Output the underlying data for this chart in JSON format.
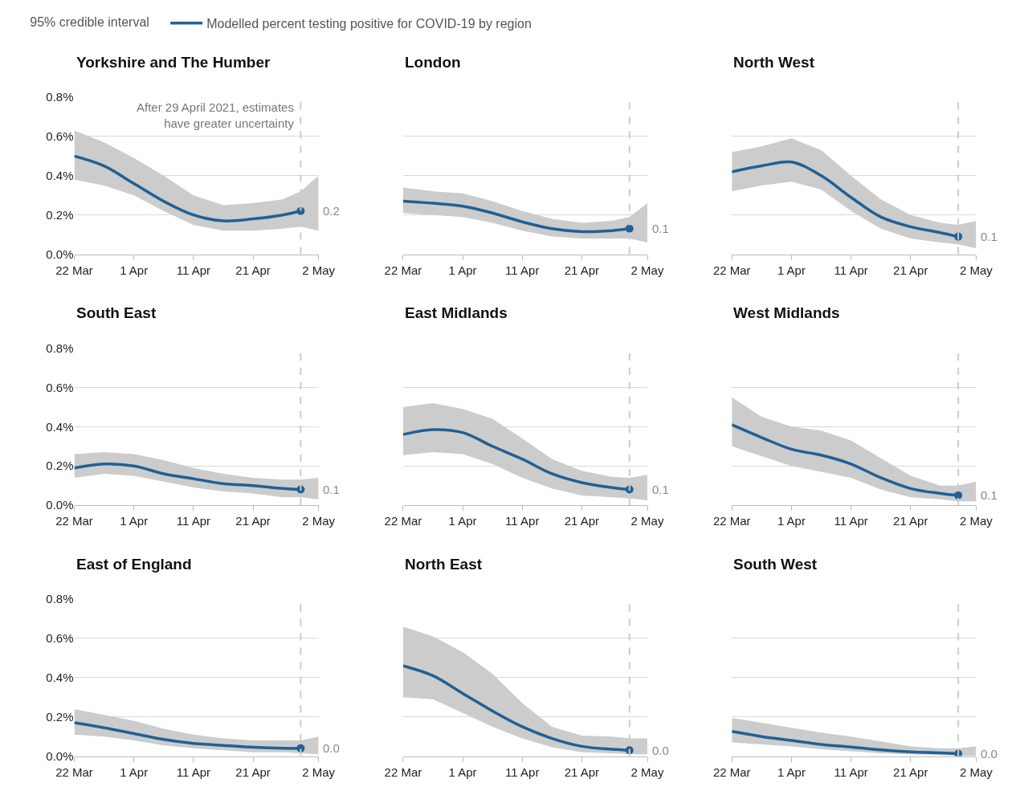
{
  "chart_data": [
    {
      "type": "line",
      "title": "Yorkshire and The Humber",
      "x": [
        "2021-03-22",
        "2021-03-27",
        "2021-04-01",
        "2021-04-06",
        "2021-04-11",
        "2021-04-16",
        "2021-04-21",
        "2021-04-26",
        "2021-04-29",
        "2021-05-02"
      ],
      "xlim": [
        "2021-03-22",
        "2021-05-02"
      ],
      "xticks": [
        {
          "value": "2021-03-22",
          "label": "22 Mar"
        },
        {
          "value": "2021-04-01",
          "label": "1 Apr"
        },
        {
          "value": "2021-04-11",
          "label": "11 Apr"
        },
        {
          "value": "2021-04-21",
          "label": "21 Apr"
        },
        {
          "value": "2021-05-02",
          "label": "2 May"
        }
      ],
      "ylim": [
        0,
        0.8
      ],
      "yticks": [
        {
          "value": 0,
          "label": "0.0%"
        },
        {
          "value": 0.2,
          "label": "0.2%"
        },
        {
          "value": 0.4,
          "label": "0.4%"
        },
        {
          "value": 0.6,
          "label": "0.6%"
        },
        {
          "value": 0.8,
          "label": "0.8%"
        }
      ],
      "grid": "y",
      "legend": "top",
      "legend_title": "95% credible interval",
      "ref_lines": [
        {
          "axis": "x",
          "value": "2021-04-29",
          "label": "After 29 April 2021, estimates\nhave greater uncertainty",
          "color": "#cccccc",
          "line_style": "dashed"
        }
      ],
      "series": [
        {
          "name": "Modelled percent testing positive for COVID-19 by region",
          "color": "#206095",
          "values": [
            0.5,
            0.45,
            0.36,
            0.27,
            0.2,
            0.17,
            0.18,
            0.2,
            0.22,
            null
          ],
          "lower": [
            0.38,
            0.35,
            0.3,
            0.22,
            0.15,
            0.12,
            0.12,
            0.13,
            0.14,
            0.12
          ],
          "upper": [
            0.63,
            0.57,
            0.49,
            0.4,
            0.3,
            0.25,
            0.26,
            0.28,
            0.32,
            0.4
          ],
          "value_labels": [
            null,
            null,
            null,
            null,
            null,
            null,
            null,
            null,
            "0.2",
            null
          ]
        }
      ]
    },
    {
      "type": "line",
      "title": "London",
      "x": [
        "2021-03-22",
        "2021-03-27",
        "2021-04-01",
        "2021-04-06",
        "2021-04-11",
        "2021-04-16",
        "2021-04-21",
        "2021-04-26",
        "2021-04-29",
        "2021-05-02"
      ],
      "xlim": [
        "2021-03-22",
        "2021-05-02"
      ],
      "xticks": [
        {
          "value": "2021-03-22",
          "label": "22 Mar"
        },
        {
          "value": "2021-04-01",
          "label": "1 Apr"
        },
        {
          "value": "2021-04-11",
          "label": "11 Apr"
        },
        {
          "value": "2021-04-21",
          "label": "21 Apr"
        },
        {
          "value": "2021-05-02",
          "label": "2 May"
        }
      ],
      "ylim": [
        0,
        0.8
      ],
      "yticks": [
        0,
        0.2,
        0.4,
        0.6,
        0.8
      ],
      "grid": "y",
      "tick_labels": "x",
      "ref_lines": [
        {
          "axis": "x",
          "value": "2021-04-29",
          "color": "#cccccc",
          "line_style": "dashed"
        }
      ],
      "series": [
        {
          "color": "#206095",
          "values": [
            0.27,
            0.26,
            0.245,
            0.21,
            0.165,
            0.13,
            0.115,
            0.12,
            0.13,
            null
          ],
          "lower": [
            0.21,
            0.2,
            0.19,
            0.16,
            0.12,
            0.09,
            0.08,
            0.08,
            0.08,
            0.06
          ],
          "upper": [
            0.34,
            0.32,
            0.31,
            0.27,
            0.22,
            0.18,
            0.16,
            0.17,
            0.19,
            0.26
          ],
          "value_labels": [
            null,
            null,
            null,
            null,
            null,
            null,
            null,
            null,
            "0.1",
            null
          ]
        }
      ]
    },
    {
      "type": "line",
      "title": "North West",
      "x": [
        "2021-03-22",
        "2021-03-27",
        "2021-04-01",
        "2021-04-06",
        "2021-04-11",
        "2021-04-16",
        "2021-04-21",
        "2021-04-26",
        "2021-04-29",
        "2021-05-02"
      ],
      "xlim": [
        "2021-03-22",
        "2021-05-02"
      ],
      "xticks": [
        {
          "value": "2021-03-22",
          "label": "22 Mar"
        },
        {
          "value": "2021-04-01",
          "label": "1 Apr"
        },
        {
          "value": "2021-04-11",
          "label": "11 Apr"
        },
        {
          "value": "2021-04-21",
          "label": "21 Apr"
        },
        {
          "value": "2021-05-02",
          "label": "2 May"
        }
      ],
      "ylim": [
        0,
        0.8
      ],
      "yticks": [
        0,
        0.2,
        0.4,
        0.6,
        0.8
      ],
      "grid": "y",
      "tick_labels": "x",
      "ref_lines": [
        {
          "axis": "x",
          "value": "2021-04-29",
          "color": "#cccccc",
          "line_style": "dashed"
        }
      ],
      "series": [
        {
          "color": "#206095",
          "values": [
            0.42,
            0.45,
            0.47,
            0.4,
            0.29,
            0.19,
            0.14,
            0.11,
            0.09,
            null
          ],
          "lower": [
            0.32,
            0.35,
            0.37,
            0.33,
            0.22,
            0.13,
            0.08,
            0.06,
            0.05,
            0.03
          ],
          "upper": [
            0.52,
            0.55,
            0.59,
            0.53,
            0.4,
            0.28,
            0.2,
            0.16,
            0.15,
            0.17
          ],
          "value_labels": [
            null,
            null,
            null,
            null,
            null,
            null,
            null,
            null,
            "0.1",
            null
          ]
        }
      ]
    },
    {
      "type": "line",
      "title": "South East",
      "x": [
        "2021-03-22",
        "2021-03-27",
        "2021-04-01",
        "2021-04-06",
        "2021-04-11",
        "2021-04-16",
        "2021-04-21",
        "2021-04-26",
        "2021-04-29",
        "2021-05-02"
      ],
      "xlim": [
        "2021-03-22",
        "2021-05-02"
      ],
      "xticks": [
        {
          "value": "2021-03-22",
          "label": "22 Mar"
        },
        {
          "value": "2021-04-01",
          "label": "1 Apr"
        },
        {
          "value": "2021-04-11",
          "label": "11 Apr"
        },
        {
          "value": "2021-04-21",
          "label": "21 Apr"
        },
        {
          "value": "2021-05-02",
          "label": "2 May"
        }
      ],
      "ylim": [
        0,
        0.8
      ],
      "yticks": [
        {
          "value": 0,
          "label": "0.0%"
        },
        {
          "value": 0.2,
          "label": "0.2%"
        },
        {
          "value": 0.4,
          "label": "0.4%"
        },
        {
          "value": 0.6,
          "label": "0.6%"
        },
        {
          "value": 0.8,
          "label": "0.8%"
        }
      ],
      "grid": "y",
      "ref_lines": [
        {
          "axis": "x",
          "value": "2021-04-29",
          "color": "#cccccc",
          "line_style": "dashed"
        }
      ],
      "series": [
        {
          "color": "#206095",
          "values": [
            0.19,
            0.21,
            0.2,
            0.16,
            0.135,
            0.11,
            0.1,
            0.085,
            0.08,
            null
          ],
          "lower": [
            0.14,
            0.16,
            0.15,
            0.12,
            0.09,
            0.07,
            0.06,
            0.04,
            0.04,
            0.03
          ],
          "upper": [
            0.26,
            0.27,
            0.26,
            0.23,
            0.19,
            0.16,
            0.14,
            0.13,
            0.13,
            0.14
          ],
          "value_labels": [
            null,
            null,
            null,
            null,
            null,
            null,
            null,
            null,
            "0.1",
            null
          ]
        }
      ]
    },
    {
      "type": "line",
      "title": "East Midlands",
      "x": [
        "2021-03-22",
        "2021-03-27",
        "2021-04-01",
        "2021-04-06",
        "2021-04-11",
        "2021-04-16",
        "2021-04-21",
        "2021-04-26",
        "2021-04-29",
        "2021-05-02"
      ],
      "xlim": [
        "2021-03-22",
        "2021-05-02"
      ],
      "xticks": [
        {
          "value": "2021-03-22",
          "label": "22 Mar"
        },
        {
          "value": "2021-04-01",
          "label": "1 Apr"
        },
        {
          "value": "2021-04-11",
          "label": "11 Apr"
        },
        {
          "value": "2021-04-21",
          "label": "21 Apr"
        },
        {
          "value": "2021-05-02",
          "label": "2 May"
        }
      ],
      "ylim": [
        0,
        0.8
      ],
      "yticks": [
        0,
        0.2,
        0.4,
        0.6,
        0.8
      ],
      "grid": "y",
      "tick_labels": "x",
      "ref_lines": [
        {
          "axis": "x",
          "value": "2021-04-29",
          "color": "#cccccc",
          "line_style": "dashed"
        }
      ],
      "series": [
        {
          "color": "#206095",
          "values": [
            0.36,
            0.385,
            0.37,
            0.3,
            0.235,
            0.16,
            0.115,
            0.09,
            0.08,
            null
          ],
          "lower": [
            0.255,
            0.27,
            0.26,
            0.21,
            0.14,
            0.085,
            0.05,
            0.04,
            0.035,
            0.025
          ],
          "upper": [
            0.5,
            0.52,
            0.49,
            0.44,
            0.34,
            0.235,
            0.175,
            0.145,
            0.14,
            0.155
          ],
          "value_labels": [
            null,
            null,
            null,
            null,
            null,
            null,
            null,
            null,
            "0.1",
            null
          ]
        }
      ]
    },
    {
      "type": "line",
      "title": "West Midlands",
      "x": [
        "2021-03-22",
        "2021-03-27",
        "2021-04-01",
        "2021-04-06",
        "2021-04-11",
        "2021-04-16",
        "2021-04-21",
        "2021-04-26",
        "2021-04-29",
        "2021-05-02"
      ],
      "xlim": [
        "2021-03-22",
        "2021-05-02"
      ],
      "xticks": [
        {
          "value": "2021-03-22",
          "label": "22 Mar"
        },
        {
          "value": "2021-04-01",
          "label": "1 Apr"
        },
        {
          "value": "2021-04-11",
          "label": "11 Apr"
        },
        {
          "value": "2021-04-21",
          "label": "21 Apr"
        },
        {
          "value": "2021-05-02",
          "label": "2 May"
        }
      ],
      "ylim": [
        0,
        0.8
      ],
      "yticks": [
        0,
        0.2,
        0.4,
        0.6,
        0.8
      ],
      "grid": "y",
      "tick_labels": "x",
      "ref_lines": [
        {
          "axis": "x",
          "value": "2021-04-29",
          "color": "#cccccc",
          "line_style": "dashed"
        }
      ],
      "series": [
        {
          "color": "#206095",
          "values": [
            0.41,
            0.345,
            0.285,
            0.255,
            0.21,
            0.14,
            0.085,
            0.06,
            0.05,
            null
          ],
          "lower": [
            0.3,
            0.25,
            0.2,
            0.17,
            0.14,
            0.08,
            0.04,
            0.03,
            0.02,
            0.02
          ],
          "upper": [
            0.55,
            0.45,
            0.4,
            0.38,
            0.33,
            0.24,
            0.15,
            0.1,
            0.1,
            0.12
          ],
          "value_labels": [
            null,
            null,
            null,
            null,
            null,
            null,
            null,
            null,
            "0.1",
            null
          ]
        }
      ]
    },
    {
      "type": "line",
      "title": "East of England",
      "x": [
        "2021-03-22",
        "2021-03-27",
        "2021-04-01",
        "2021-04-06",
        "2021-04-11",
        "2021-04-16",
        "2021-04-21",
        "2021-04-26",
        "2021-04-29",
        "2021-05-02"
      ],
      "xlim": [
        "2021-03-22",
        "2021-05-02"
      ],
      "xticks": [
        {
          "value": "2021-03-22",
          "label": "22 Mar"
        },
        {
          "value": "2021-04-01",
          "label": "1 Apr"
        },
        {
          "value": "2021-04-11",
          "label": "11 Apr"
        },
        {
          "value": "2021-04-21",
          "label": "21 Apr"
        },
        {
          "value": "2021-05-02",
          "label": "2 May"
        }
      ],
      "ylim": [
        0,
        0.8
      ],
      "yticks": [
        {
          "value": 0,
          "label": "0.0%"
        },
        {
          "value": 0.2,
          "label": "0.2%"
        },
        {
          "value": 0.4,
          "label": "0.4%"
        },
        {
          "value": 0.6,
          "label": "0.6%"
        },
        {
          "value": 0.8,
          "label": "0.8%"
        }
      ],
      "grid": "y",
      "ref_lines": [
        {
          "axis": "x",
          "value": "2021-04-29",
          "color": "#cccccc",
          "line_style": "dashed"
        }
      ],
      "series": [
        {
          "color": "#206095",
          "values": [
            0.17,
            0.145,
            0.115,
            0.085,
            0.065,
            0.055,
            0.045,
            0.04,
            0.04,
            null
          ],
          "lower": [
            0.11,
            0.1,
            0.08,
            0.055,
            0.04,
            0.03,
            0.02,
            0.02,
            0.015,
            0.01
          ],
          "upper": [
            0.24,
            0.21,
            0.18,
            0.14,
            0.11,
            0.09,
            0.08,
            0.08,
            0.08,
            0.1
          ],
          "value_labels": [
            null,
            null,
            null,
            null,
            null,
            null,
            null,
            null,
            "0.0",
            null
          ]
        }
      ]
    },
    {
      "type": "line",
      "title": "North East",
      "x": [
        "2021-03-22",
        "2021-03-27",
        "2021-04-01",
        "2021-04-06",
        "2021-04-11",
        "2021-04-16",
        "2021-04-21",
        "2021-04-26",
        "2021-04-29",
        "2021-05-02"
      ],
      "xlim": [
        "2021-03-22",
        "2021-05-02"
      ],
      "xticks": [
        {
          "value": "2021-03-22",
          "label": "22 Mar"
        },
        {
          "value": "2021-04-01",
          "label": "1 Apr"
        },
        {
          "value": "2021-04-11",
          "label": "11 Apr"
        },
        {
          "value": "2021-04-21",
          "label": "21 Apr"
        },
        {
          "value": "2021-05-02",
          "label": "2 May"
        }
      ],
      "ylim": [
        0,
        0.8
      ],
      "yticks": [
        0,
        0.2,
        0.4,
        0.6,
        0.8
      ],
      "grid": "y",
      "tick_labels": "x",
      "ref_lines": [
        {
          "axis": "x",
          "value": "2021-04-29",
          "color": "#cccccc",
          "line_style": "dashed"
        }
      ],
      "series": [
        {
          "color": "#206095",
          "values": [
            0.46,
            0.41,
            0.32,
            0.23,
            0.15,
            0.09,
            0.05,
            0.035,
            0.03,
            null
          ],
          "lower": [
            0.3,
            0.29,
            0.22,
            0.15,
            0.09,
            0.045,
            0.02,
            0.015,
            0.01,
            0.01
          ],
          "upper": [
            0.66,
            0.61,
            0.53,
            0.42,
            0.27,
            0.15,
            0.105,
            0.1,
            0.09,
            0.09
          ],
          "value_labels": [
            null,
            null,
            null,
            null,
            null,
            null,
            null,
            null,
            "0.0",
            null
          ]
        }
      ]
    },
    {
      "type": "line",
      "title": "South West",
      "x": [
        "2021-03-22",
        "2021-03-27",
        "2021-04-01",
        "2021-04-06",
        "2021-04-11",
        "2021-04-16",
        "2021-04-21",
        "2021-04-26",
        "2021-04-29",
        "2021-05-02"
      ],
      "xlim": [
        "2021-03-22",
        "2021-05-02"
      ],
      "xticks": [
        {
          "value": "2021-03-22",
          "label": "22 Mar"
        },
        {
          "value": "2021-04-01",
          "label": "1 Apr"
        },
        {
          "value": "2021-04-11",
          "label": "11 Apr"
        },
        {
          "value": "2021-04-21",
          "label": "21 Apr"
        },
        {
          "value": "2021-05-02",
          "label": "2 May"
        }
      ],
      "ylim": [
        0,
        0.8
      ],
      "yticks": [
        0,
        0.2,
        0.4,
        0.6,
        0.8
      ],
      "grid": "y",
      "tick_labels": "x",
      "ref_lines": [
        {
          "axis": "x",
          "value": "2021-04-29",
          "color": "#cccccc",
          "line_style": "dashed"
        }
      ],
      "series": [
        {
          "color": "#206095",
          "values": [
            0.126,
            0.1,
            0.08,
            0.06,
            0.047,
            0.032,
            0.022,
            0.017,
            0.013,
            null
          ],
          "lower": [
            0.07,
            0.06,
            0.05,
            0.035,
            0.025,
            0.015,
            0.01,
            0.005,
            0.003,
            0.0
          ],
          "upper": [
            0.195,
            0.17,
            0.145,
            0.12,
            0.1,
            0.075,
            0.05,
            0.04,
            0.04,
            0.05
          ],
          "value_labels": [
            null,
            null,
            null,
            null,
            null,
            null,
            null,
            null,
            "0.0",
            null
          ]
        }
      ]
    }
  ]
}
